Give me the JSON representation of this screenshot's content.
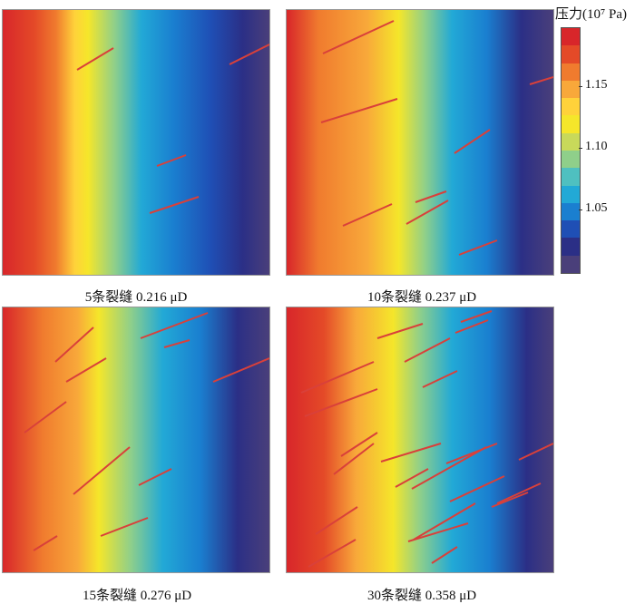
{
  "panels": [
    {
      "caption": "5条裂缝   0.216 μD",
      "fracture_count": 5
    },
    {
      "caption": "10条裂缝   0.237 μD",
      "fracture_count": 10
    },
    {
      "caption": "15条裂缝   0.276 μD",
      "fracture_count": 15
    },
    {
      "caption": "30条裂缝   0.358 μD",
      "fracture_count": 30
    }
  ],
  "colorbar": {
    "title": "压力(10⁷ Pa)",
    "ticks": [
      "1.15",
      "1.10",
      "1.05"
    ],
    "tick_values": [
      1.15,
      1.1,
      1.05
    ],
    "range": [
      1.0,
      1.2
    ],
    "colormap": [
      "#4a3f7a",
      "#2b2f86",
      "#1f4fb5",
      "#1a7fd0",
      "#22a9d6",
      "#4fc0c0",
      "#8fcf8a",
      "#c8d95a",
      "#f5e62a",
      "#ffd23a",
      "#f8a83a",
      "#f07b2e",
      "#e44a28",
      "#d8262a"
    ]
  },
  "colors": {
    "fracture": "#d9403a"
  }
}
